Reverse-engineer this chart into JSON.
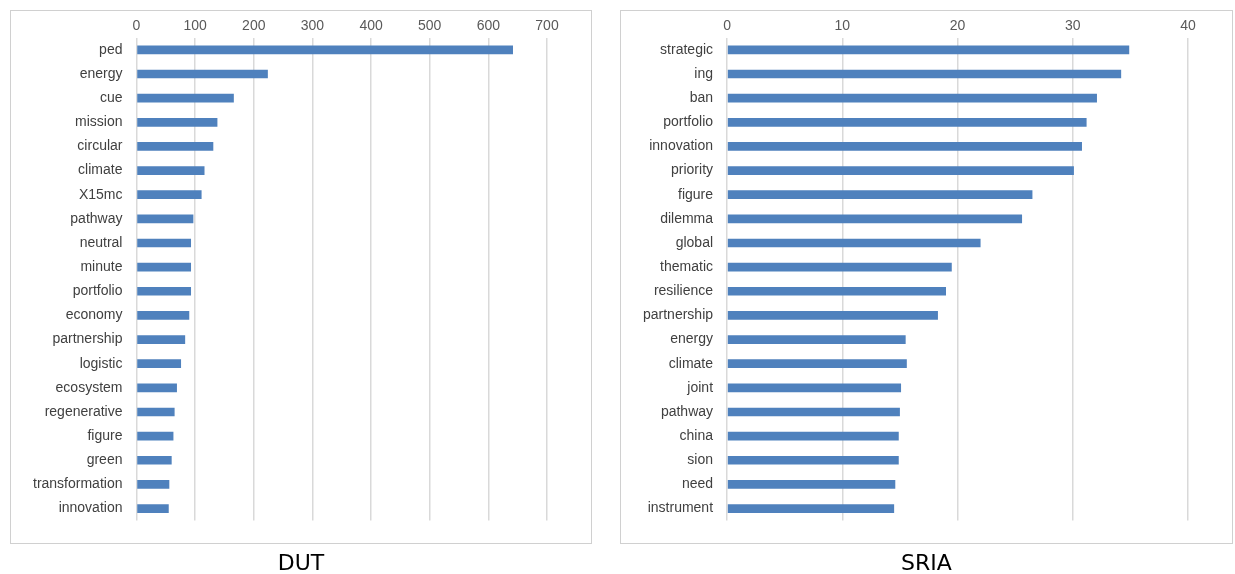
{
  "chart_data": [
    {
      "type": "bar",
      "orientation": "horizontal",
      "title": "DUT",
      "categories": [
        "ped",
        "energy",
        "cue",
        "mission",
        "circular",
        "climate",
        "X15mc",
        "pathway",
        "neutral",
        "minute",
        "portfolio",
        "economy",
        "partnership",
        "logistic",
        "ecosystem",
        "regenerative",
        "figure",
        "green",
        "transformation",
        "innovation"
      ],
      "values": [
        642,
        224,
        166,
        138,
        131,
        116,
        111,
        97,
        93,
        93,
        93,
        90,
        83,
        76,
        69,
        65,
        63,
        60,
        56,
        55
      ],
      "color": "#4f81bd",
      "xlim": [
        0,
        700
      ],
      "xticks": [
        0,
        100,
        200,
        300,
        400,
        500,
        600,
        700
      ],
      "grid": "x"
    },
    {
      "type": "bar",
      "orientation": "horizontal",
      "title": "SRIA",
      "categories": [
        "strategic",
        "ing",
        "ban",
        "portfolio",
        "innovation",
        "priority",
        "figure",
        "dilemma",
        "global",
        "thematic",
        "resilience",
        "partnership",
        "energy",
        "climate",
        "joint",
        "pathway",
        "china",
        "sion",
        "need",
        "instrument"
      ],
      "values": [
        34.9,
        34.2,
        32.1,
        31.2,
        30.8,
        30.1,
        26.5,
        25.6,
        22.0,
        19.5,
        19.0,
        18.3,
        15.5,
        15.6,
        15.1,
        15.0,
        14.9,
        14.9,
        14.6,
        14.5
      ],
      "color": "#4f81bd",
      "xlim": [
        0,
        40
      ],
      "xticks": [
        0,
        10,
        20,
        30,
        40
      ],
      "grid": "x"
    }
  ]
}
